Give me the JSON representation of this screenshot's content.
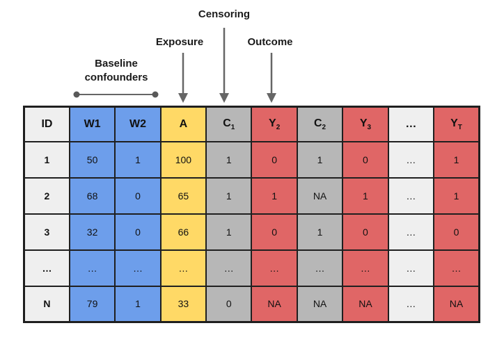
{
  "annotations": {
    "censoring": "Censoring",
    "exposure": "Exposure",
    "outcome": "Outcome",
    "baseline_line1": "Baseline",
    "baseline_line2": "confounders"
  },
  "colors": {
    "blue": "#6d9eeb",
    "yellow": "#ffd966",
    "red": "#e06666",
    "gray": "#b7b7b7",
    "light": "#efefef",
    "border": "#1f1f1f",
    "arrow": "#666666"
  },
  "table": {
    "columns": [
      {
        "name": "id",
        "base": "ID",
        "sub": "",
        "color": "light"
      },
      {
        "name": "w1",
        "base": "W1",
        "sub": "",
        "color": "blue"
      },
      {
        "name": "w2",
        "base": "W2",
        "sub": "",
        "color": "blue"
      },
      {
        "name": "a",
        "base": "A",
        "sub": "",
        "color": "yellow"
      },
      {
        "name": "c1",
        "base": "C",
        "sub": "1",
        "color": "gray"
      },
      {
        "name": "y2",
        "base": "Y",
        "sub": "2",
        "color": "red"
      },
      {
        "name": "c2",
        "base": "C",
        "sub": "2",
        "color": "gray"
      },
      {
        "name": "y3",
        "base": "Y",
        "sub": "3",
        "color": "red"
      },
      {
        "name": "dots",
        "base": "…",
        "sub": "",
        "color": "light"
      },
      {
        "name": "yt",
        "base": "Y",
        "sub": "T",
        "color": "red"
      }
    ],
    "rows": [
      [
        "1",
        "50",
        "1",
        "100",
        "1",
        "0",
        "1",
        "0",
        "…",
        "1"
      ],
      [
        "2",
        "68",
        "0",
        "65",
        "1",
        "1",
        "NA",
        "1",
        "…",
        "1"
      ],
      [
        "3",
        "32",
        "0",
        "66",
        "1",
        "0",
        "1",
        "0",
        "…",
        "0"
      ],
      [
        "…",
        "…",
        "…",
        "…",
        "…",
        "…",
        "…",
        "…",
        "…",
        "…"
      ],
      [
        "N",
        "79",
        "1",
        "33",
        "0",
        "NA",
        "NA",
        "NA",
        "…",
        "NA"
      ]
    ]
  }
}
